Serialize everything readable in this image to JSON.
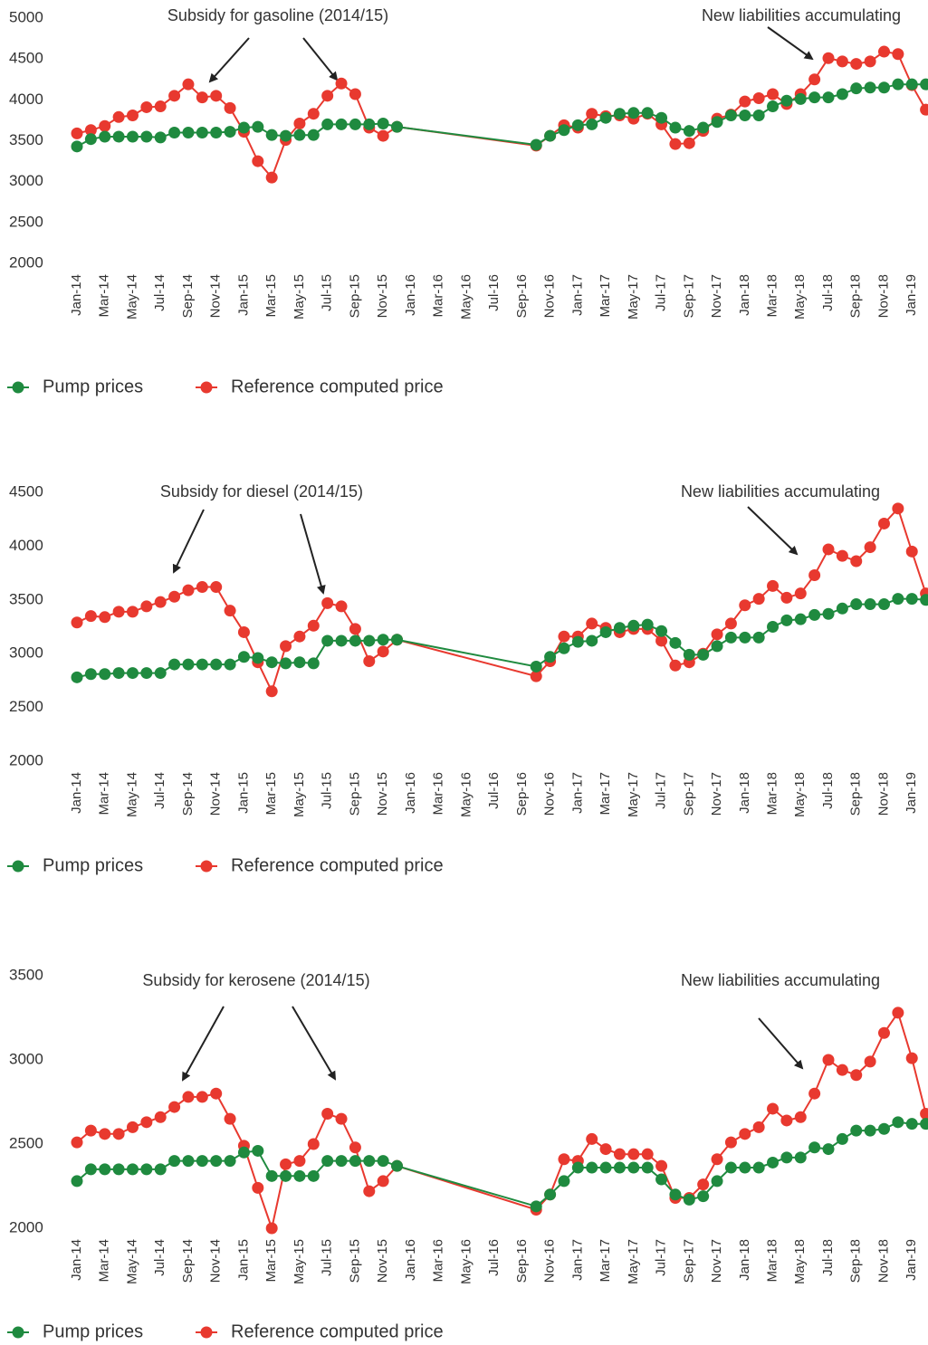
{
  "chart_data": [
    {
      "type": "line",
      "annotations": [
        "Subsidy for gasoline (2014/15)",
        "New liabilities accumulating"
      ],
      "x": [
        "Jan-14",
        "Feb-14",
        "Mar-14",
        "Apr-14",
        "May-14",
        "Jun-14",
        "Jul-14",
        "Aug-14",
        "Sep-14",
        "Oct-14",
        "Nov-14",
        "Dec-14",
        "Jan-15",
        "Feb-15",
        "Mar-15",
        "Apr-15",
        "May-15",
        "Jun-15",
        "Jul-15",
        "Aug-15",
        "Sep-15",
        "Oct-15",
        "Nov-15",
        "Dec-15",
        "Oct-16",
        "Nov-16",
        "Dec-16",
        "Jan-17",
        "Feb-17",
        "Mar-17",
        "Apr-17",
        "May-17",
        "Jun-17",
        "Jul-17",
        "Aug-17",
        "Sep-17",
        "Oct-17",
        "Nov-17",
        "Dec-17",
        "Jan-18",
        "Feb-18",
        "Mar-18",
        "Apr-18",
        "May-18",
        "Jun-18",
        "Jul-18",
        "Aug-18",
        "Sep-18",
        "Oct-18",
        "Nov-18",
        "Dec-18",
        "Jan-19",
        "Feb-19"
      ],
      "xlim": [
        "Jan-14",
        "Feb-19"
      ],
      "xticks": [
        "Jan-14",
        "Mar-14",
        "May-14",
        "Jul-14",
        "Sep-14",
        "Nov-14",
        "Jan-15",
        "Mar-15",
        "May-15",
        "Jul-15",
        "Sep-15",
        "Nov-15",
        "Jan-16",
        "Mar-16",
        "May-16",
        "Jul-16",
        "Sep-16",
        "Nov-16",
        "Jan-17",
        "Mar-17",
        "May-17",
        "Jul-17",
        "Sep-17",
        "Nov-17",
        "Jan-18",
        "Mar-18",
        "May-18",
        "Jul-18",
        "Sep-18",
        "Nov-18",
        "Jan-19"
      ],
      "ylim": [
        2000,
        5000
      ],
      "yticks": [
        2000,
        2500,
        3000,
        3500,
        4000,
        4500,
        5000
      ],
      "series": [
        {
          "name": "Pump prices",
          "color": "#1f8a3f",
          "values": [
            3430,
            3520,
            3550,
            3550,
            3550,
            3550,
            3540,
            3600,
            3600,
            3600,
            3600,
            3610,
            3660,
            3670,
            3570,
            3560,
            3570,
            3570,
            3700,
            3700,
            3700,
            3700,
            3710,
            3670,
            3450,
            3560,
            3630,
            3690,
            3700,
            3780,
            3830,
            3840,
            3840,
            3780,
            3660,
            3620,
            3660,
            3730,
            3810,
            3810,
            3810,
            3920,
            3990,
            4010,
            4030,
            4030,
            4070,
            4140,
            4150,
            4150,
            4190,
            4190,
            4190
          ]
        },
        {
          "name": "Reference computed price",
          "color": "#e8392f",
          "values": [
            3590,
            3630,
            3680,
            3790,
            3810,
            3910,
            3920,
            4050,
            4190,
            4030,
            4050,
            3900,
            3610,
            3250,
            3050,
            3510,
            3710,
            3830,
            4050,
            4200,
            4070,
            3660,
            3560,
            3670,
            3440,
            3560,
            3690,
            3660,
            3830,
            3800,
            3810,
            3770,
            3830,
            3700,
            3460,
            3470,
            3620,
            3770,
            3820,
            3980,
            4020,
            4070,
            3950,
            4070,
            4250,
            4510,
            4470,
            4440,
            4470,
            4590,
            4560,
            4180,
            3880
          ]
        }
      ]
    },
    {
      "type": "line",
      "annotations": [
        "Subsidy for diesel (2014/15)",
        "New liabilities accumulating"
      ],
      "x": [
        "Jan-14",
        "Feb-14",
        "Mar-14",
        "Apr-14",
        "May-14",
        "Jun-14",
        "Jul-14",
        "Aug-14",
        "Sep-14",
        "Oct-14",
        "Nov-14",
        "Dec-14",
        "Jan-15",
        "Feb-15",
        "Mar-15",
        "Apr-15",
        "May-15",
        "Jun-15",
        "Jul-15",
        "Aug-15",
        "Sep-15",
        "Oct-15",
        "Nov-15",
        "Dec-15",
        "Oct-16",
        "Nov-16",
        "Dec-16",
        "Jan-17",
        "Feb-17",
        "Mar-17",
        "Apr-17",
        "May-17",
        "Jun-17",
        "Jul-17",
        "Aug-17",
        "Sep-17",
        "Oct-17",
        "Nov-17",
        "Dec-17",
        "Jan-18",
        "Feb-18",
        "Mar-18",
        "Apr-18",
        "May-18",
        "Jun-18",
        "Jul-18",
        "Aug-18",
        "Sep-18",
        "Oct-18",
        "Nov-18",
        "Dec-18",
        "Jan-19",
        "Feb-19"
      ],
      "xlim": [
        "Jan-14",
        "Feb-19"
      ],
      "xticks": [
        "Jan-14",
        "Mar-14",
        "May-14",
        "Jul-14",
        "Sep-14",
        "Nov-14",
        "Jan-15",
        "Mar-15",
        "May-15",
        "Jul-15",
        "Sep-15",
        "Nov-15",
        "Jan-16",
        "Mar-16",
        "May-16",
        "Jul-16",
        "Sep-16",
        "Nov-16",
        "Jan-17",
        "Mar-17",
        "May-17",
        "Jul-17",
        "Sep-17",
        "Nov-17",
        "Jan-18",
        "Mar-18",
        "May-18",
        "Jul-18",
        "Sep-18",
        "Nov-18",
        "Jan-19"
      ],
      "ylim": [
        2000,
        4500
      ],
      "yticks": [
        2000,
        2500,
        3000,
        3500,
        4000,
        4500
      ],
      "series": [
        {
          "name": "Pump prices",
          "color": "#1f8a3f",
          "values": [
            2780,
            2810,
            2810,
            2820,
            2820,
            2820,
            2820,
            2900,
            2900,
            2900,
            2900,
            2900,
            2970,
            2960,
            2920,
            2910,
            2920,
            2910,
            3120,
            3120,
            3120,
            3120,
            3130,
            3130,
            2880,
            2970,
            3050,
            3110,
            3120,
            3200,
            3240,
            3260,
            3270,
            3210,
            3100,
            2990,
            2990,
            3070,
            3150,
            3150,
            3150,
            3250,
            3310,
            3320,
            3360,
            3370,
            3420,
            3460,
            3460,
            3460,
            3510,
            3510,
            3500
          ]
        },
        {
          "name": "Reference computed price",
          "color": "#e8392f",
          "values": [
            3290,
            3350,
            3340,
            3390,
            3390,
            3440,
            3480,
            3530,
            3590,
            3620,
            3620,
            3400,
            3200,
            2920,
            2650,
            3070,
            3160,
            3260,
            3470,
            3440,
            3230,
            2930,
            3020,
            3130,
            2790,
            2930,
            3160,
            3160,
            3280,
            3240,
            3200,
            3230,
            3230,
            3120,
            2890,
            2920,
            3000,
            3180,
            3280,
            3450,
            3510,
            3630,
            3520,
            3560,
            3730,
            3970,
            3910,
            3860,
            3990,
            4210,
            4350,
            3950,
            3560
          ]
        }
      ]
    },
    {
      "type": "line",
      "annotations": [
        "Subsidy for kerosene (2014/15)",
        "New liabilities accumulating"
      ],
      "x": [
        "Jan-14",
        "Feb-14",
        "Mar-14",
        "Apr-14",
        "May-14",
        "Jun-14",
        "Jul-14",
        "Aug-14",
        "Sep-14",
        "Oct-14",
        "Nov-14",
        "Dec-14",
        "Jan-15",
        "Feb-15",
        "Mar-15",
        "Apr-15",
        "May-15",
        "Jun-15",
        "Jul-15",
        "Aug-15",
        "Sep-15",
        "Oct-15",
        "Nov-15",
        "Dec-15",
        "Oct-16",
        "Nov-16",
        "Dec-16",
        "Jan-17",
        "Feb-17",
        "Mar-17",
        "Apr-17",
        "May-17",
        "Jun-17",
        "Jul-17",
        "Aug-17",
        "Sep-17",
        "Oct-17",
        "Nov-17",
        "Dec-17",
        "Jan-18",
        "Feb-18",
        "Mar-18",
        "Apr-18",
        "May-18",
        "Jun-18",
        "Jul-18",
        "Aug-18",
        "Sep-18",
        "Oct-18",
        "Nov-18",
        "Dec-18",
        "Jan-19",
        "Feb-19"
      ],
      "xlim": [
        "Jan-14",
        "Feb-19"
      ],
      "xticks": [
        "Jan-14",
        "Mar-14",
        "May-14",
        "Jul-14",
        "Sep-14",
        "Nov-14",
        "Jan-15",
        "Mar-15",
        "May-15",
        "Jul-15",
        "Sep-15",
        "Nov-15",
        "Jan-16",
        "Mar-16",
        "May-16",
        "Jul-16",
        "Sep-16",
        "Nov-16",
        "Jan-17",
        "Mar-17",
        "May-17",
        "Jul-17",
        "Sep-17",
        "Nov-17",
        "Jan-18",
        "Mar-18",
        "May-18",
        "Jul-18",
        "Sep-18",
        "Nov-18",
        "Jan-19"
      ],
      "ylim": [
        2000,
        3500
      ],
      "yticks": [
        2000,
        2500,
        3000,
        3500
      ],
      "series": [
        {
          "name": "Pump prices",
          "color": "#1f8a3f",
          "values": [
            2280,
            2350,
            2350,
            2350,
            2350,
            2350,
            2350,
            2400,
            2400,
            2400,
            2400,
            2400,
            2450,
            2460,
            2310,
            2310,
            2310,
            2310,
            2400,
            2400,
            2400,
            2400,
            2400,
            2370,
            2130,
            2200,
            2280,
            2360,
            2360,
            2360,
            2360,
            2360,
            2360,
            2290,
            2200,
            2170,
            2190,
            2280,
            2360,
            2360,
            2360,
            2390,
            2420,
            2420,
            2480,
            2470,
            2530,
            2580,
            2580,
            2590,
            2630,
            2620,
            2620
          ]
        },
        {
          "name": "Reference computed price",
          "color": "#e8392f",
          "values": [
            2510,
            2580,
            2560,
            2560,
            2600,
            2630,
            2660,
            2720,
            2780,
            2780,
            2800,
            2650,
            2490,
            2240,
            2000,
            2380,
            2400,
            2500,
            2680,
            2650,
            2480,
            2220,
            2280,
            2370,
            2110,
            2200,
            2410,
            2400,
            2530,
            2470,
            2440,
            2440,
            2440,
            2370,
            2180,
            2180,
            2260,
            2410,
            2510,
            2560,
            2600,
            2710,
            2640,
            2660,
            2800,
            3000,
            2940,
            2910,
            2990,
            3160,
            3280,
            3010,
            2680
          ]
        }
      ]
    }
  ]
}
